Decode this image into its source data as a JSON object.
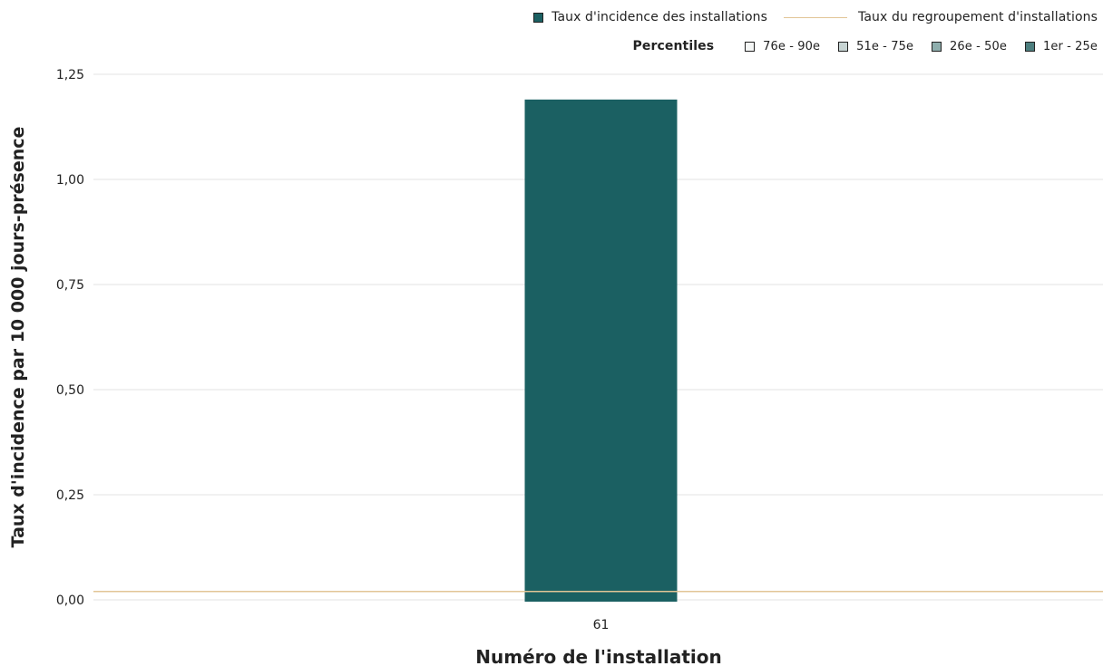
{
  "legend": {
    "bar_label": "Taux d'incidence des installations",
    "bar_color": "#1b6062",
    "line_label": "Taux du regroupement d'installations",
    "line_color": "#e2c596",
    "percentiles_title": "Percentiles",
    "percentiles": [
      {
        "label": "76e - 90e",
        "color": "#f4f6f5"
      },
      {
        "label": "51e - 75e",
        "color": "#c7d4d3"
      },
      {
        "label": "26e - 50e",
        "color": "#8eaead"
      },
      {
        "label": "1er - 25e",
        "color": "#4d7f7f"
      }
    ]
  },
  "chart_data": {
    "type": "bar",
    "categories": [
      "61"
    ],
    "series": [
      {
        "name": "Taux d'incidence des installations",
        "values": [
          1.19
        ],
        "color": "#1b6062"
      }
    ],
    "reference_line": {
      "name": "Taux du regroupement d'installations",
      "value": 0.02,
      "color": "#e2c596"
    },
    "xlabel": "Numéro de l'installation",
    "ylabel": "Taux d'incidence par 10 000 jours-présence",
    "ylim": [
      0,
      1.25
    ],
    "yticks": [
      0,
      0.25,
      0.5,
      0.75,
      1.0,
      1.25
    ],
    "ytick_labels": [
      "0,00",
      "0,25",
      "0,50",
      "0,75",
      "1,00",
      "1,25"
    ],
    "grid": true,
    "legend_position": "top-right"
  }
}
